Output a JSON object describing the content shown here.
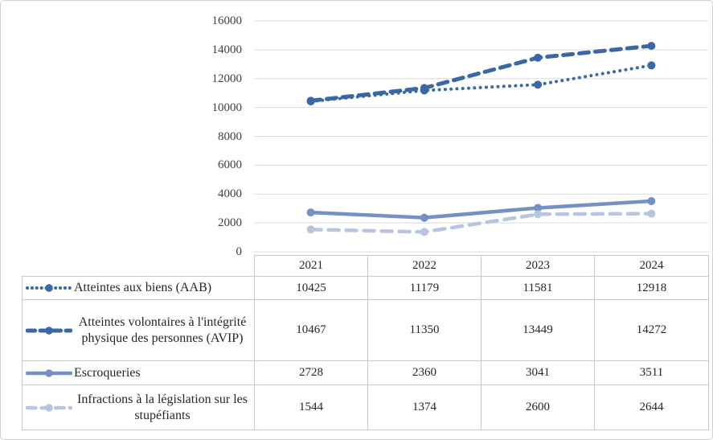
{
  "chart_data": {
    "type": "line",
    "categories": [
      "2021",
      "2022",
      "2023",
      "2024"
    ],
    "series": [
      {
        "name": "Atteintes aux biens (AAB)",
        "values": [
          10425,
          11179,
          11581,
          12918
        ],
        "color": "#3a67a5",
        "dash": "dotted",
        "marker": "circle"
      },
      {
        "name": "Atteintes volontaires à l'intégrité physique des personnes (AVIP)",
        "values": [
          10467,
          11350,
          13449,
          14272
        ],
        "color": "#3a67a5",
        "dash": "dashed",
        "marker": "circle"
      },
      {
        "name": "Escroqueries",
        "values": [
          2728,
          2360,
          3041,
          3511
        ],
        "color": "#7591c4",
        "dash": "solid",
        "marker": "circle"
      },
      {
        "name": "Infractions à la législation sur les stupéfiants",
        "values": [
          1544,
          1374,
          2600,
          2644
        ],
        "color": "#b7c5e3",
        "dash": "lightdash",
        "marker": "circle"
      }
    ],
    "title": "",
    "xlabel": "",
    "ylabel": "",
    "ylim": [
      0,
      16000
    ],
    "ytick_step": 2000,
    "yticks": [
      "0",
      "2000",
      "4000",
      "6000",
      "8000",
      "10000",
      "12000",
      "14000",
      "16000"
    ],
    "grid": true,
    "grid_color": "#d9d9d9",
    "legend_position": "data-table-left-column"
  }
}
